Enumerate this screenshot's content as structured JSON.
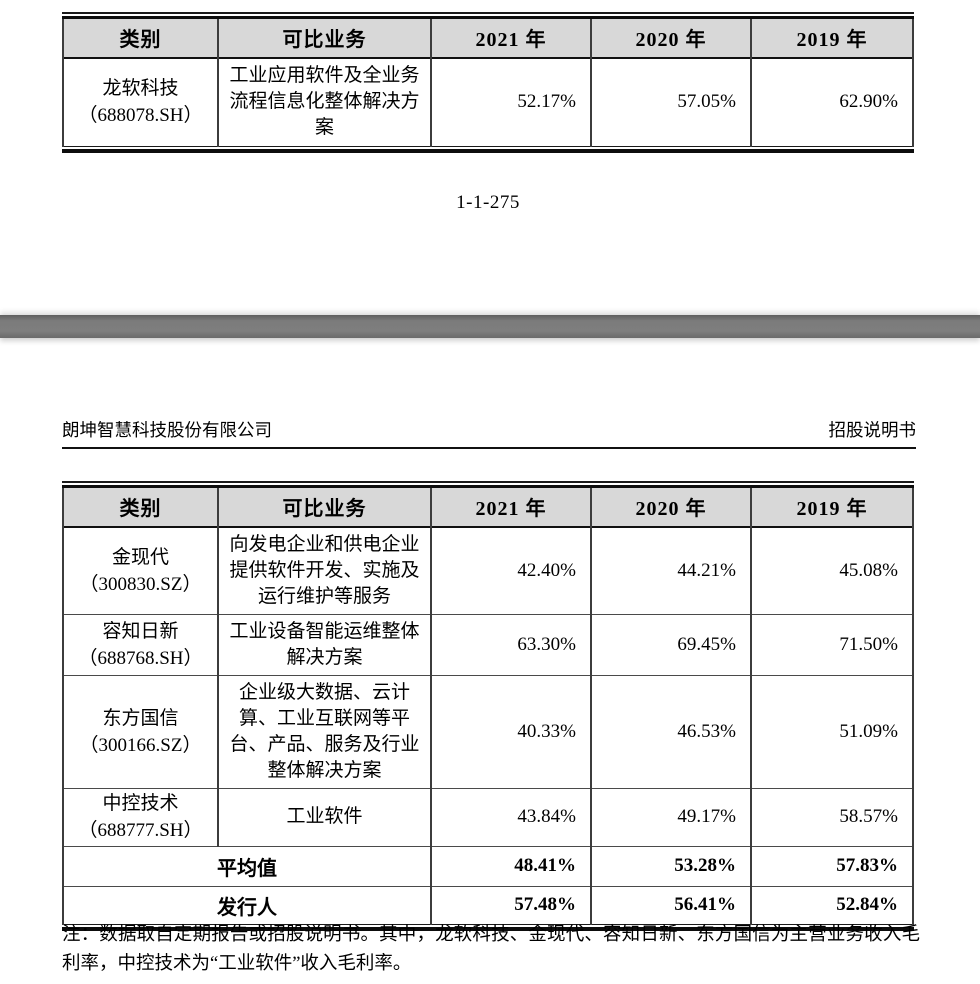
{
  "colors": {
    "header_bg": "#d8d8d8",
    "divider_bar": "#7b7b7b",
    "text": "#000000"
  },
  "page1": {
    "table": {
      "headers": [
        "类别",
        "可比业务",
        "2021 年",
        "2020 年",
        "2019 年"
      ],
      "rows": [
        {
          "name": "龙软科技",
          "code": "（688078.SH）",
          "business": "工业应用软件及全业务流程信息化整体解决方案",
          "v2021": "52.17%",
          "v2020": "57.05%",
          "v2019": "62.90%"
        }
      ]
    },
    "page_number": "1-1-275"
  },
  "page2": {
    "header_left": "朗坤智慧科技股份有限公司",
    "header_right": "招股说明书",
    "table": {
      "headers": [
        "类别",
        "可比业务",
        "2021 年",
        "2020 年",
        "2019 年"
      ],
      "rows": [
        {
          "name": "金现代",
          "code": "（300830.SZ）",
          "business": "向发电企业和供电企业提供软件开发、实施及运行维护等服务",
          "v2021": "42.40%",
          "v2020": "44.21%",
          "v2019": "45.08%"
        },
        {
          "name": "容知日新",
          "code": "（688768.SH）",
          "business": "工业设备智能运维整体解决方案",
          "v2021": "63.30%",
          "v2020": "69.45%",
          "v2019": "71.50%"
        },
        {
          "name": "东方国信",
          "code": "（300166.SZ）",
          "business": "企业级大数据、云计算、工业互联网等平台、产品、服务及行业整体解决方案",
          "v2021": "40.33%",
          "v2020": "46.53%",
          "v2019": "51.09%"
        },
        {
          "name": "中控技术",
          "code": "（688777.SH）",
          "business": "工业软件",
          "v2021": "43.84%",
          "v2020": "49.17%",
          "v2019": "58.57%"
        }
      ],
      "summary_rows": [
        {
          "label": "平均值",
          "v2021": "48.41%",
          "v2020": "53.28%",
          "v2019": "57.83%"
        },
        {
          "label": "发行人",
          "v2021": "57.48%",
          "v2020": "56.41%",
          "v2019": "52.84%"
        }
      ]
    },
    "note": "注：数据取自定期报告或招股说明书。其中，龙软科技、金现代、容知日新、东方国信为主营业务收入毛利率，中控技术为“工业软件”收入毛利率。"
  }
}
